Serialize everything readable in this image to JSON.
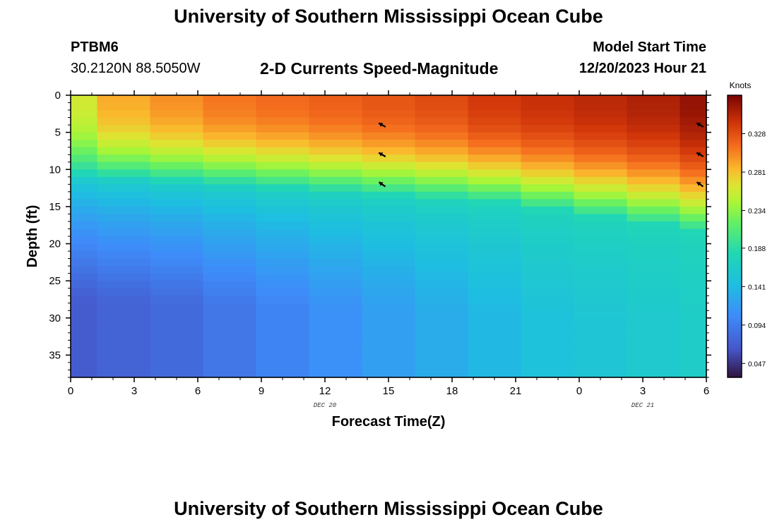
{
  "header": {
    "title": "University of Southern Mississippi Ocean Cube",
    "station_id": "PTBM6",
    "coords": "30.2120N  88.5050W",
    "plot_title": "2-D Currents Speed-Magnitude",
    "model_start_label": "Model Start Time",
    "model_start_value": "12/20/2023 Hour 21"
  },
  "footer": {
    "title": "University of Southern Mississippi Ocean Cube"
  },
  "chart_data": {
    "type": "heatmap",
    "title": "2-D Currents Speed-Magnitude",
    "xlabel": "Forecast Time(Z)",
    "ylabel": "Depth (ft)",
    "x_ticks": [
      "0",
      "3",
      "6",
      "9",
      "12",
      "15",
      "18",
      "21",
      "0",
      "3",
      "6"
    ],
    "x_date_labels": [
      {
        "tick_index": 4,
        "text": "DEC 20"
      },
      {
        "tick_index": 9,
        "text": "DEC 21"
      }
    ],
    "x_range_hours": [
      0,
      30
    ],
    "y_ticks": [
      0,
      5,
      10,
      15,
      20,
      25,
      30,
      35
    ],
    "ylim": [
      0,
      38
    ],
    "colorbar": {
      "units": "Knots",
      "tick_values": [
        "0.328",
        "0.281",
        "0.234",
        "0.188",
        "0.141",
        "0.094",
        "0.047"
      ],
      "range": [
        0.03,
        0.375
      ]
    },
    "time_columns_hours": [
      0,
      2.5,
      5,
      7.5,
      10,
      12.5,
      15,
      17.5,
      20,
      22.5,
      25,
      27.5,
      30
    ],
    "surface_speed_knots": [
      0.26,
      0.29,
      0.3,
      0.31,
      0.315,
      0.32,
      0.325,
      0.33,
      0.34,
      0.345,
      0.35,
      0.355,
      0.365
    ],
    "upper_layer_base_ft": [
      10.5,
      11,
      11.5,
      12,
      12.5,
      13,
      13.5,
      14,
      14.5,
      15.5,
      16.5,
      17.5,
      18.5
    ],
    "bottom_speed_knots": [
      0.07,
      0.075,
      0.08,
      0.09,
      0.1,
      0.11,
      0.12,
      0.13,
      0.14,
      0.15,
      0.155,
      0.16,
      0.165
    ],
    "vectors": [
      {
        "time_hours": 14.7,
        "depth_ft": 4,
        "direction_deg": 300
      },
      {
        "time_hours": 14.7,
        "depth_ft": 8,
        "direction_deg": 300
      },
      {
        "time_hours": 14.7,
        "depth_ft": 12,
        "direction_deg": 305
      },
      {
        "time_hours": 29.7,
        "depth_ft": 4,
        "direction_deg": 300
      },
      {
        "time_hours": 29.7,
        "depth_ft": 8,
        "direction_deg": 300
      },
      {
        "time_hours": 29.7,
        "depth_ft": 12,
        "direction_deg": 305
      }
    ]
  }
}
